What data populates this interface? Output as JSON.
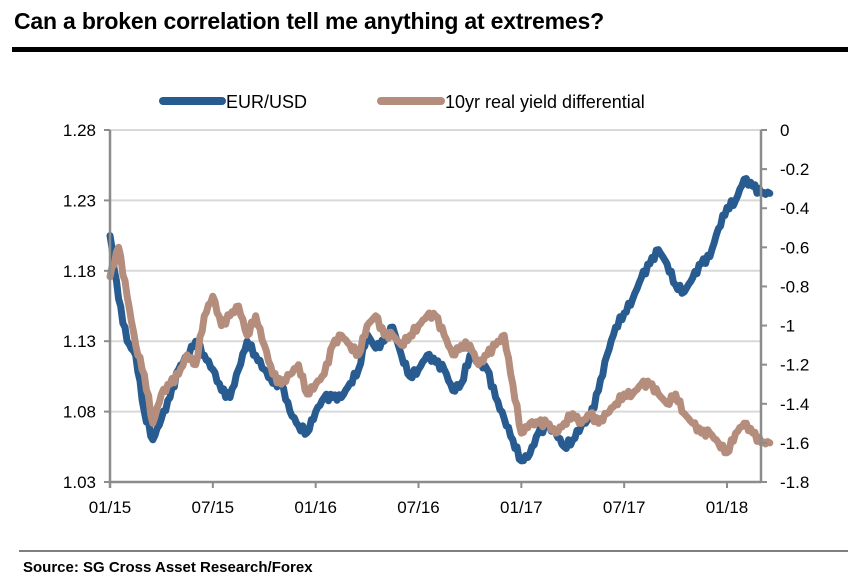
{
  "title": "Can a broken correlation tell me anything at extremes?",
  "source": "Source: SG Cross Asset Research/Forex",
  "chart_data": {
    "type": "line",
    "title": "Can a broken correlation tell me anything at extremes?",
    "xlabel": "",
    "ylabel_left": "",
    "ylabel_right": "",
    "x_tick_labels": [
      "01/15",
      "07/15",
      "01/16",
      "07/16",
      "01/17",
      "07/17",
      "01/18"
    ],
    "x_range_months": [
      0,
      38.5
    ],
    "x_tick_months": [
      0,
      6,
      12,
      18,
      24,
      30,
      36
    ],
    "y_left": {
      "range": [
        1.03,
        1.28
      ],
      "ticks": [
        "1.28",
        "1.23",
        "1.18",
        "1.13",
        "1.08",
        "1.03"
      ],
      "tick_values": [
        1.28,
        1.23,
        1.18,
        1.13,
        1.08,
        1.03
      ]
    },
    "y_right": {
      "range": [
        -1.8,
        0
      ],
      "ticks": [
        "0",
        "-0.2",
        "-0.4",
        "-0.6",
        "-0.8",
        "-1",
        "-1.2",
        "-1.4",
        "-1.6",
        "-1.8"
      ],
      "tick_values": [
        0,
        -0.2,
        -0.4,
        -0.6,
        -0.8,
        -1.0,
        -1.2,
        -1.4,
        -1.6,
        -1.8
      ]
    },
    "grid": true,
    "legend_position": "top",
    "colors": {
      "eurusd": "#285b8f",
      "yield": "#b58d7c",
      "axis": "#8c8c8c",
      "grid": "#d9d9d9"
    },
    "series": [
      {
        "name": "EUR/USD",
        "axis": "left",
        "months": [
          0,
          0.5,
          1,
          1.5,
          2,
          2.5,
          3,
          3.5,
          4,
          4.5,
          5,
          5.5,
          6,
          6.5,
          7,
          7.5,
          8,
          8.5,
          9,
          9.5,
          10,
          10.5,
          11,
          11.5,
          12,
          12.5,
          13,
          13.5,
          14,
          14.5,
          15,
          15.5,
          16,
          16.5,
          17,
          17.5,
          18,
          18.5,
          19,
          19.5,
          20,
          20.5,
          21,
          21.5,
          22,
          22.5,
          23,
          23.5,
          24,
          24.5,
          25,
          25.5,
          26,
          26.5,
          27,
          27.5,
          28,
          28.5,
          29,
          29.5,
          30,
          30.5,
          31,
          31.5,
          32,
          32.5,
          33,
          33.5,
          34,
          34.5,
          35,
          35.5,
          36,
          36.5,
          37,
          37.5,
          38,
          38.5
        ],
        "values": [
          1.205,
          1.16,
          1.13,
          1.12,
          1.08,
          1.06,
          1.075,
          1.09,
          1.11,
          1.12,
          1.13,
          1.12,
          1.11,
          1.095,
          1.09,
          1.11,
          1.13,
          1.12,
          1.11,
          1.1,
          1.1,
          1.08,
          1.07,
          1.065,
          1.08,
          1.09,
          1.09,
          1.09,
          1.1,
          1.11,
          1.135,
          1.125,
          1.13,
          1.14,
          1.12,
          1.105,
          1.11,
          1.12,
          1.115,
          1.11,
          1.095,
          1.1,
          1.12,
          1.115,
          1.11,
          1.09,
          1.075,
          1.06,
          1.045,
          1.05,
          1.065,
          1.07,
          1.065,
          1.055,
          1.06,
          1.07,
          1.075,
          1.095,
          1.12,
          1.14,
          1.15,
          1.16,
          1.175,
          1.185,
          1.195,
          1.185,
          1.17,
          1.165,
          1.175,
          1.185,
          1.19,
          1.21,
          1.225,
          1.23,
          1.245,
          1.24,
          1.235,
          1.235
        ]
      },
      {
        "name": "10yr real yield differential",
        "axis": "right",
        "months": [
          0,
          0.5,
          1,
          1.5,
          2,
          2.5,
          3,
          3.5,
          4,
          4.5,
          5,
          5.5,
          6,
          6.5,
          7,
          7.5,
          8,
          8.5,
          9,
          9.5,
          10,
          10.5,
          11,
          11.5,
          12,
          12.5,
          13,
          13.5,
          14,
          14.5,
          15,
          15.5,
          16,
          16.5,
          17,
          17.5,
          18,
          18.5,
          19,
          19.5,
          20,
          20.5,
          21,
          21.5,
          22,
          22.5,
          23,
          23.5,
          24,
          24.5,
          25,
          25.5,
          26,
          26.5,
          27,
          27.5,
          28,
          28.5,
          29,
          29.5,
          30,
          30.5,
          31,
          31.5,
          32,
          32.5,
          33,
          33.5,
          34,
          34.5,
          35,
          35.5,
          36,
          36.5,
          37,
          37.5,
          38,
          38.5
        ],
        "values": [
          -0.75,
          -0.6,
          -0.85,
          -1.1,
          -1.25,
          -1.5,
          -1.35,
          -1.3,
          -1.25,
          -1.15,
          -1.2,
          -0.95,
          -0.85,
          -1.0,
          -0.95,
          -0.9,
          -1.05,
          -0.95,
          -1.1,
          -1.25,
          -1.3,
          -1.25,
          -1.2,
          -1.35,
          -1.3,
          -1.25,
          -1.1,
          -1.05,
          -1.1,
          -1.15,
          -1.0,
          -0.95,
          -1.05,
          -1.05,
          -1.1,
          -1.05,
          -1.0,
          -0.95,
          -0.95,
          -1.05,
          -1.15,
          -1.1,
          -1.1,
          -1.2,
          -1.15,
          -1.1,
          -1.05,
          -1.3,
          -1.55,
          -1.5,
          -1.5,
          -1.5,
          -1.55,
          -1.5,
          -1.45,
          -1.5,
          -1.45,
          -1.5,
          -1.45,
          -1.4,
          -1.35,
          -1.35,
          -1.3,
          -1.3,
          -1.35,
          -1.4,
          -1.35,
          -1.45,
          -1.5,
          -1.55,
          -1.55,
          -1.6,
          -1.65,
          -1.55,
          -1.5,
          -1.55,
          -1.6,
          -1.6
        ]
      }
    ]
  }
}
